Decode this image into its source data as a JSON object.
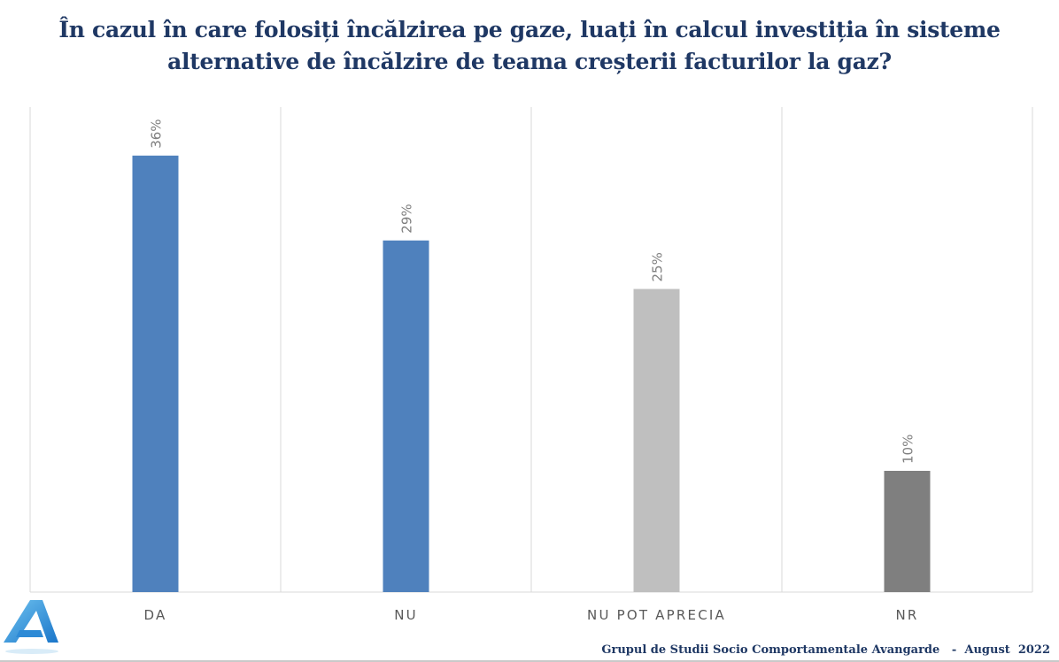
{
  "chart_data": {
    "type": "bar",
    "title": "În cazul în care folosiți încălzirea pe gaze, luați în calcul investiția în sisteme alternative de încălzire de teama creșterii facturilor la gaz?",
    "categories": [
      "DA",
      "NU",
      "NU POT APRECIA",
      "NR"
    ],
    "values": [
      36,
      29,
      25,
      10
    ],
    "value_labels": [
      "36%",
      "29%",
      "25%",
      "10%"
    ],
    "colors": [
      "#4f81bd",
      "#4f81bd",
      "#bfbfbf",
      "#7f7f7f"
    ],
    "xlabel": "",
    "ylabel": "",
    "ylim": [
      0,
      40
    ],
    "grid": "vertical category separators",
    "legend": "none"
  },
  "footer": {
    "source": "Grupul de Studii Socio Comportamentale Avangarde",
    "separator": "-",
    "date": "August  2022"
  },
  "logo": {
    "icon": "avangarde-logo-icon",
    "letter": "A"
  }
}
